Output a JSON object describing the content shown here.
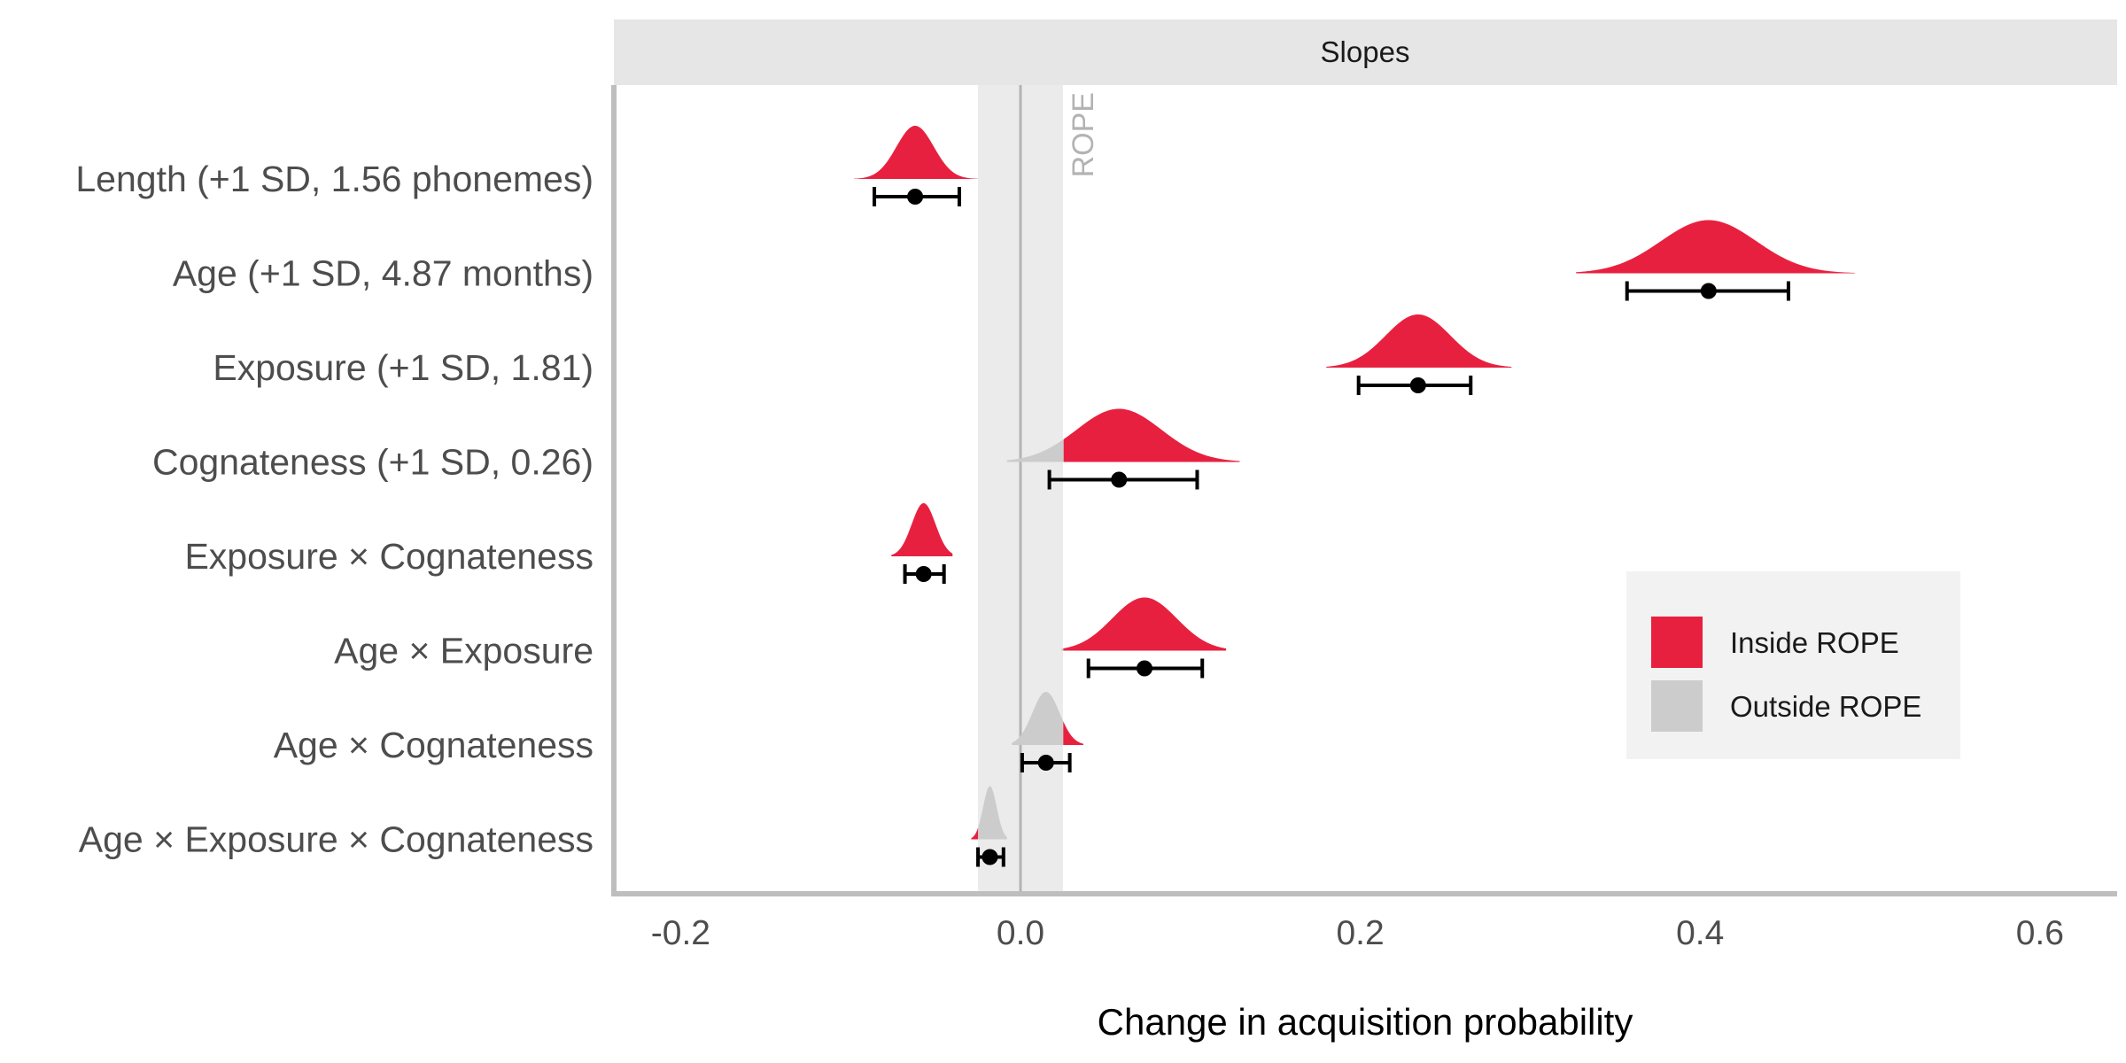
{
  "chart_data": {
    "type": "ridgeline-interval",
    "panel_title": "Slopes",
    "xlabel": "Change in acquisition probability",
    "ylabel": "",
    "xlim": [
      -0.24,
      0.64
    ],
    "x_ticks": [
      -0.2,
      0.0,
      0.2,
      0.4,
      0.6
    ],
    "x_tick_labels": [
      "-0.2",
      "0.0",
      "0.2",
      "0.4",
      "0.6"
    ],
    "grid": false,
    "rope": {
      "label": "ROPE",
      "range": [
        -0.025,
        0.025
      ]
    },
    "reference_line": 0.0,
    "legend": {
      "position": "right",
      "entries": [
        {
          "label": "Inside ROPE",
          "color": "#e8203f"
        },
        {
          "label": "Outside ROPE",
          "color": "#cccccc"
        }
      ]
    },
    "colors": {
      "inside": "#e8203f",
      "outside": "#cccccc",
      "rope_band": "#ebebeb",
      "strip": "#e6e6e6"
    },
    "terms": [
      {
        "label": "Length (+1 SD, 1.56 phonemes)",
        "estimate": -0.062,
        "lower": -0.086,
        "upper": -0.036,
        "sd": 0.011,
        "density_min": -0.098,
        "density_max": -0.025
      },
      {
        "label": "Age (+1 SD, 4.87 months)",
        "estimate": 0.405,
        "lower": 0.357,
        "upper": 0.452,
        "sd": 0.028,
        "density_min": 0.327,
        "density_max": 0.491
      },
      {
        "label": "Exposure (+1 SD, 1.81)",
        "estimate": 0.234,
        "lower": 0.199,
        "upper": 0.265,
        "sd": 0.019,
        "density_min": 0.18,
        "density_max": 0.289
      },
      {
        "label": "Cognateness (+1 SD, 0.26)",
        "estimate": 0.058,
        "lower": 0.017,
        "upper": 0.104,
        "sd": 0.025,
        "density_min": -0.008,
        "density_max": 0.129
      },
      {
        "label": "Exposure × Cognateness",
        "estimate": -0.057,
        "lower": -0.068,
        "upper": -0.045,
        "sd": 0.007,
        "density_min": -0.076,
        "density_max": -0.04
      },
      {
        "label": "Age × Exposure",
        "estimate": 0.073,
        "lower": 0.04,
        "upper": 0.107,
        "sd": 0.019,
        "density_min": 0.024,
        "density_max": 0.121
      },
      {
        "label": "Age × Cognateness",
        "estimate": 0.015,
        "lower": 0.001,
        "upper": 0.029,
        "sd": 0.008,
        "density_min": -0.005,
        "density_max": 0.037
      },
      {
        "label": "Age × Exposure × Cognateness",
        "estimate": -0.018,
        "lower": -0.025,
        "upper": -0.01,
        "sd": 0.004,
        "density_min": -0.029,
        "density_max": -0.008
      }
    ]
  }
}
